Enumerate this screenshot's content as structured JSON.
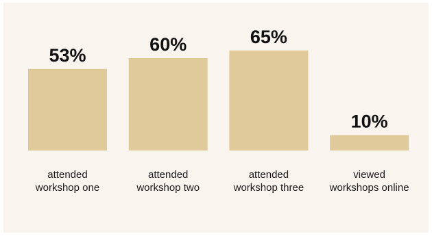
{
  "chart_data": {
    "type": "bar",
    "categories": [
      [
        "attended",
        "workshop one"
      ],
      [
        "attended",
        "workshop two"
      ],
      [
        "attended",
        "workshop three"
      ],
      [
        "viewed",
        "workshops online"
      ]
    ],
    "values": [
      53,
      60,
      65,
      10
    ],
    "value_labels": [
      "53%",
      "60%",
      "65%",
      "10%"
    ],
    "ylim": [
      0,
      100
    ],
    "bar_color": "#e1ca9a",
    "background_color": "#f9f4ee",
    "grid": false,
    "legend": "none"
  }
}
